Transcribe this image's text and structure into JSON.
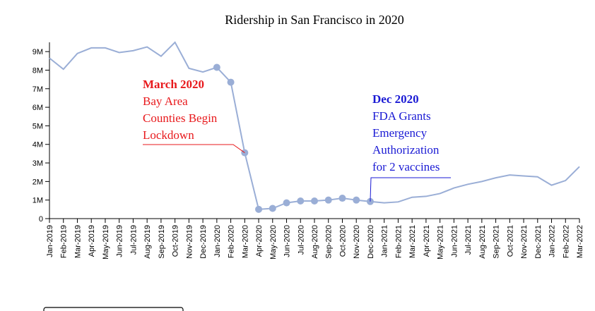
{
  "chart_data": {
    "type": "line",
    "title": "Ridership in San Francisco in 2020",
    "categories": [
      "Jan-2019",
      "Feb-2019",
      "Mar-2019",
      "Apr-2019",
      "May-2019",
      "Jun-2019",
      "Jul-2019",
      "Aug-2019",
      "Sep-2019",
      "Oct-2019",
      "Nov-2019",
      "Dec-2019",
      "Jan-2020",
      "Feb-2020",
      "Mar-2020",
      "Apr-2020",
      "May-2020",
      "Jun-2020",
      "Jul-2020",
      "Aug-2020",
      "Sep-2020",
      "Oct-2020",
      "Nov-2020",
      "Dec-2020",
      "Jan-2021",
      "Feb-2021",
      "Mar-2021",
      "Apr-2021",
      "May-2021",
      "Jun-2021",
      "Jul-2021",
      "Aug-2021",
      "Sep-2021",
      "Oct-2021",
      "Nov-2021",
      "Dec-2021",
      "Jan-2022",
      "Feb-2022",
      "Mar-2022"
    ],
    "series": [
      {
        "color": "#9aaed6",
        "values": [
          8650000,
          8050000,
          8900000,
          9200000,
          9200000,
          8950000,
          9050000,
          9250000,
          8750000,
          9500000,
          8100000,
          7900000,
          8150000,
          7350000,
          3550000,
          500000,
          550000,
          850000,
          950000,
          950000,
          1000000,
          1100000,
          1000000,
          920000,
          850000,
          900000,
          1150000,
          1200000,
          1350000,
          1650000,
          1850000,
          2000000,
          2200000,
          2350000,
          2300000,
          2250000,
          1800000,
          2050000,
          2800000
        ]
      }
    ],
    "markers": {
      "from": "Jan-2020",
      "to": "Dec-2020"
    },
    "ylim": [
      0,
      9500000
    ],
    "yticks": [
      0,
      {
        "value": 1000000,
        "label": "1M"
      },
      {
        "value": 2000000,
        "label": "2M"
      },
      {
        "value": 3000000,
        "label": "3M"
      },
      {
        "value": 4000000,
        "label": "4M"
      },
      {
        "value": 5000000,
        "label": "5M"
      },
      {
        "value": 6000000,
        "label": "6M"
      },
      {
        "value": 7000000,
        "label": "7M"
      },
      {
        "value": 8000000,
        "label": "8M"
      },
      {
        "value": 9000000,
        "label": "9M"
      }
    ],
    "annotations": [
      {
        "title": "March 2020",
        "lines": [
          "Bay Area",
          "Counties Begin",
          "Lockdown"
        ],
        "color": "#e8191c",
        "at": "Mar-2020"
      },
      {
        "title": "Dec 2020",
        "lines": [
          "FDA Grants",
          "Emergency",
          "Authorization",
          "for 2 vaccines"
        ],
        "color": "#1a1ad4",
        "at": "Dec-2020"
      }
    ]
  }
}
